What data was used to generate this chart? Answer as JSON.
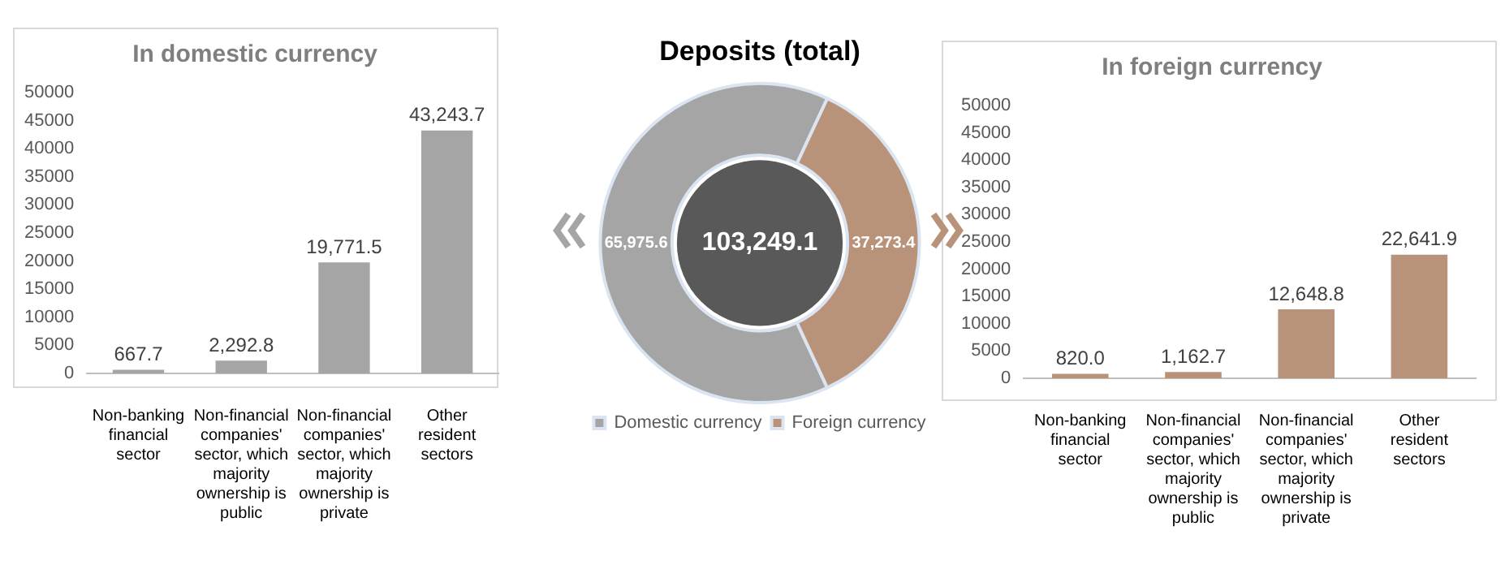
{
  "chart_data": [
    {
      "type": "bar",
      "title": "In domestic currency",
      "categories": [
        "Non-banking financial sector",
        "Non-financial companies' sector, which majority ownership is public",
        "Non-financial companies' sector, which majority ownership is private",
        "Other resident sectors"
      ],
      "values": [
        667.7,
        2292.8,
        19771.5,
        43243.7
      ],
      "value_labels": [
        "667.7",
        "2,292.8",
        "19,771.5",
        "43,243.7"
      ],
      "color": "#a5a5a5",
      "ylim": [
        0,
        50000
      ],
      "yticks": [
        0,
        5000,
        10000,
        15000,
        20000,
        25000,
        30000,
        35000,
        40000,
        45000,
        50000
      ],
      "grid": false
    },
    {
      "type": "donut",
      "title": "Deposits (total)",
      "categories": [
        "Domestic currency",
        "Foreign currency"
      ],
      "values": [
        65975.6,
        37273.4
      ],
      "value_labels": [
        "65,975.6",
        "37,273.4"
      ],
      "colors": [
        "#a5a5a5",
        "#b8937a"
      ],
      "legend": "bottom",
      "annotations": [
        "103,249.1"
      ]
    },
    {
      "type": "bar",
      "title": "In foreign currency",
      "categories": [
        "Non-banking financial sector",
        "Non-financial companies' sector, which majority ownership is public",
        "Non-financial companies' sector, which majority ownership is private",
        "Other resident sectors"
      ],
      "values": [
        820.0,
        1162.7,
        12648.8,
        22641.9
      ],
      "value_labels": [
        "820.0",
        "1,162.7",
        "12,648.8",
        "22,641.9"
      ],
      "color": "#b8937a",
      "ylim": [
        0,
        50000
      ],
      "yticks": [
        0,
        5000,
        10000,
        15000,
        20000,
        25000,
        30000,
        35000,
        40000,
        45000,
        50000
      ],
      "grid": false
    }
  ]
}
